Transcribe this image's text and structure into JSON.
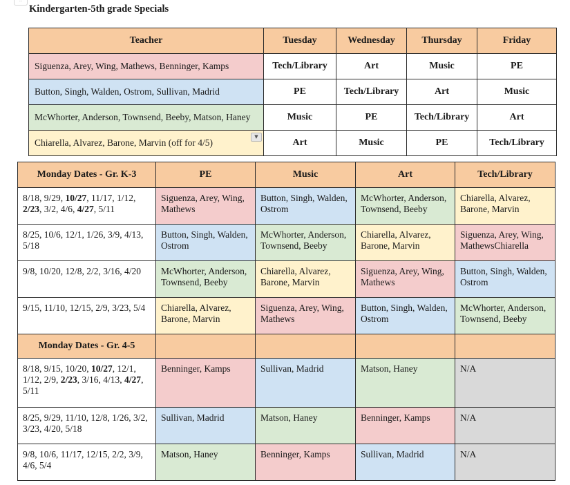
{
  "title": "Kindergarten-5th grade Specials",
  "teacher_table": {
    "headers": [
      "Teacher",
      "Tuesday",
      "Wednesday",
      "Thursday",
      "Friday"
    ],
    "rows": [
      {
        "teachers": "Siguenza, Arey, Wing, Mathews, Benninger, Kamps",
        "color": "#f4cccc",
        "days": [
          "Tech/Library",
          "Art",
          "Music",
          "PE"
        ]
      },
      {
        "teachers": "Button, Singh, Walden, Ostrom, Sullivan, Madrid",
        "color": "#cfe2f3",
        "days": [
          "PE",
          "Tech/Library",
          "Art",
          "Music"
        ]
      },
      {
        "teachers": "McWhorter, Anderson, Townsend, Beeby, Matson, Haney",
        "color": "#d9ead3",
        "days": [
          "Music",
          "PE",
          "Tech/Library",
          "Art"
        ]
      },
      {
        "teachers": "Chiarella, Alvarez, Barone, Marvin (off for 4/5)",
        "color": "#fff2cc",
        "days": [
          "Art",
          "Music",
          "PE",
          "Tech/Library"
        ]
      }
    ]
  },
  "monday_table": {
    "headers": [
      "Monday Dates -  Gr. K-3",
      "PE",
      "Music",
      "Art",
      "Tech/Library"
    ],
    "k3_rows": [
      {
        "dates": [
          {
            "t": "8/18, 9/29, ",
            "b": false
          },
          {
            "t": "10/27",
            "b": true
          },
          {
            "t": ", 11/17, 1/12, ",
            "b": false
          },
          {
            "t": "2/23",
            "b": true
          },
          {
            "t": ", 3/2, 4/6, ",
            "b": false
          },
          {
            "t": "4/27",
            "b": true
          },
          {
            "t": ", 5/11",
            "b": false
          }
        ],
        "cells": [
          "Siguenza, Arey, Wing, Mathews",
          "Button, Singh, Walden, Ostrom",
          "McWhorter, Anderson, Townsend, Beeby",
          "Chiarella, Alvarez, Barone, Marvin"
        ],
        "colors": [
          "pink",
          "blue",
          "green",
          "yellow"
        ]
      },
      {
        "dates": [
          {
            "t": "8/25, 10/6, 12/1, 1/26, 3/9, 4/13, 5/18",
            "b": false
          }
        ],
        "cells": [
          "Button, Singh, Walden, Ostrom",
          "McWhorter, Anderson, Townsend, Beeby",
          "Chiarella, Alvarez, Barone, Marvin",
          "Siguenza, Arey, Wing, MathewsChiarella"
        ],
        "colors": [
          "blue",
          "green",
          "yellow",
          "pink"
        ]
      },
      {
        "dates": [
          {
            "t": "9/8, 10/20, 12/8, 2/2, 3/16, 4/20",
            "b": false
          }
        ],
        "cells": [
          "McWhorter, Anderson, Townsend, Beeby",
          "Chiarella, Alvarez, Barone, Marvin",
          "Siguenza, Arey, Wing, Mathews",
          "Button, Singh, Walden, Ostrom"
        ],
        "colors": [
          "green",
          "yellow",
          "pink",
          "blue"
        ]
      },
      {
        "dates": [
          {
            "t": "9/15, 11/10, 12/15, 2/9, 3/23, 5/4",
            "b": false
          }
        ],
        "cells": [
          "Chiarella, Alvarez, Barone, Marvin",
          "Siguenza, Arey, Wing, Mathews",
          "Button, Singh, Walden, Ostrom",
          "McWhorter, Anderson, Townsend, Beeby"
        ],
        "colors": [
          "yellow",
          "pink",
          "blue",
          "green"
        ]
      }
    ],
    "section_label": "Monday Dates -  Gr. 4-5",
    "g45_rows": [
      {
        "dates": [
          {
            "t": "8/18, 9/15, 10/20, ",
            "b": false
          },
          {
            "t": "10/27",
            "b": true
          },
          {
            "t": ", 12/1, 1/12, 2/9,  ",
            "b": false
          },
          {
            "t": "2/23",
            "b": true
          },
          {
            "t": ", 3/16, 4/13, ",
            "b": false
          },
          {
            "t": "4/27",
            "b": true
          },
          {
            "t": ", 5/11",
            "b": false
          }
        ],
        "cells": [
          "Benninger, Kamps",
          "Sullivan, Madrid",
          "Matson, Haney",
          "N/A"
        ],
        "colors": [
          "pink",
          "blue",
          "green",
          "gray"
        ]
      },
      {
        "dates": [
          {
            "t": "8/25, 9/29, 11/10, 12/8, 1/26, 3/2, 3/23, 4/20, 5/18",
            "b": false
          }
        ],
        "cells": [
          "Sullivan, Madrid",
          "Matson, Haney",
          "Benninger, Kamps",
          "N/A"
        ],
        "colors": [
          "blue",
          "green",
          "pink",
          "gray"
        ]
      },
      {
        "dates": [
          {
            "t": "9/8, 10/6, 11/17, 12/15, 2/2, 3/9, 4/6,  5/4",
            "b": false
          }
        ],
        "cells": [
          "Matson, Haney",
          "Benninger, Kamps",
          "Sullivan, Madrid",
          "N/A"
        ],
        "colors": [
          "green",
          "pink",
          "blue",
          "gray"
        ]
      }
    ]
  }
}
